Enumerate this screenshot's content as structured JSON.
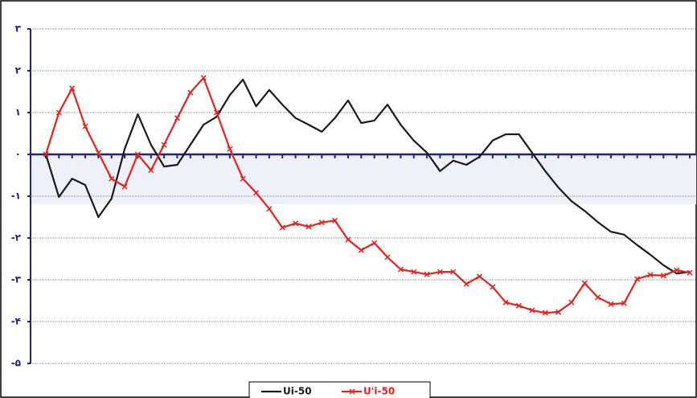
{
  "chart_data": {
    "type": "line",
    "categories": [
      null,
      null,
      null,
      null,
      null,
      null,
      null,
      null,
      null,
      null,
      null,
      null,
      null,
      null,
      null,
      null,
      null,
      null,
      null,
      null,
      null,
      null,
      null,
      null,
      null,
      null,
      null,
      null,
      null,
      null,
      null,
      null,
      null,
      null,
      null,
      null,
      null,
      null,
      null,
      null,
      null,
      null,
      null,
      null,
      null,
      null,
      null,
      null,
      null,
      null
    ],
    "series": [
      {
        "name": "Ui-50",
        "color": "#1a1a1a",
        "marker": false,
        "values": [
          0,
          -1.02,
          -0.58,
          -0.73,
          -1.5,
          -1.06,
          0.13,
          0.96,
          0.23,
          -0.29,
          -0.25,
          0.23,
          0.71,
          0.9,
          1.42,
          1.79,
          1.15,
          1.54,
          1.19,
          0.87,
          0.71,
          0.54,
          0.87,
          1.29,
          0.75,
          0.81,
          1.19,
          0.71,
          0.33,
          0.04,
          -0.4,
          -0.15,
          -0.25,
          -0.06,
          0.33,
          0.48,
          0.48,
          0.04,
          -0.4,
          -0.79,
          -1.12,
          -1.35,
          -1.62,
          -1.85,
          -1.92,
          -2.17,
          -2.4,
          -2.65,
          -2.85,
          -2.81
        ]
      },
      {
        "name": "U'i-50",
        "color": "#e8211d",
        "marker": true,
        "values": [
          0,
          1.0,
          1.58,
          0.67,
          0.04,
          -0.58,
          -0.77,
          0,
          -0.38,
          0.23,
          0.87,
          1.48,
          1.83,
          1.0,
          0.13,
          -0.58,
          -0.92,
          -1.3,
          -1.75,
          -1.65,
          -1.73,
          -1.63,
          -1.58,
          -2.04,
          -2.29,
          -2.12,
          -2.46,
          -2.75,
          -2.81,
          -2.87,
          -2.81,
          -2.81,
          -3.1,
          -2.92,
          -3.17,
          -3.54,
          -3.62,
          -3.73,
          -3.79,
          -3.77,
          -3.54,
          -3.08,
          -3.42,
          -3.58,
          -3.56,
          -2.98,
          -2.88,
          -2.9,
          -2.77,
          -2.83
        ]
      }
    ],
    "ylim": [
      -5,
      3
    ],
    "yticks": [
      {
        "value": -5,
        "label": "-۵"
      },
      {
        "value": -4,
        "label": "-۴"
      },
      {
        "value": -3,
        "label": "-۳"
      },
      {
        "value": -2,
        "label": "-۲"
      },
      {
        "value": -1,
        "label": "-۱"
      },
      {
        "value": 0,
        "label": "۰"
      },
      {
        "value": 1,
        "label": "۱"
      },
      {
        "value": 2,
        "label": "۲"
      },
      {
        "value": 3,
        "label": "۳"
      }
    ],
    "grid": true
  }
}
